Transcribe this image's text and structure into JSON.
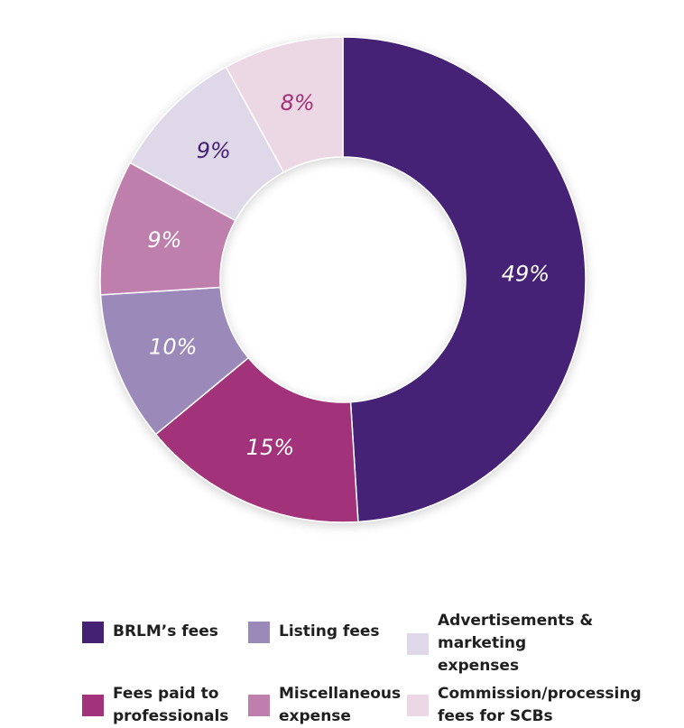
{
  "chart_data": {
    "type": "pie",
    "variant": "donut",
    "slices": [
      {
        "label": "BRLM’s fees",
        "value": 49,
        "value_label": "49%",
        "color": "#452174",
        "label_color": "#ffffff"
      },
      {
        "label": "Fees paid to professionals",
        "value": 15,
        "value_label": "15%",
        "color": "#a2327a",
        "label_color": "#ffffff"
      },
      {
        "label": "Listing fees",
        "value": 10,
        "value_label": "10%",
        "color": "#9b8ab9",
        "label_color": "#ffffff"
      },
      {
        "label": "Miscellaneous expense",
        "value": 9,
        "value_label": "9%",
        "color": "#bf7fac",
        "label_color": "#ffffff"
      },
      {
        "label": "Advertisements & marketing expenses",
        "value": 9,
        "value_label": "9%",
        "color": "#ded8e8",
        "label_color": "#452174"
      },
      {
        "label": "Commission/processing fees for SCBs",
        "value": 8,
        "value_label": "8%",
        "color": "#ecd8e4",
        "label_color": "#a2327a"
      }
    ],
    "legend": {
      "placement": "bottom",
      "rows": [
        [
          {
            "line1": "BRLM’s fees",
            "line2": "",
            "color": "#452174"
          },
          {
            "line1": "Listing fees",
            "line2": "",
            "color": "#9b8ab9"
          },
          {
            "line1": "Advertisements & marketing",
            "line2": "expenses",
            "color": "#ded8e8"
          }
        ],
        [
          {
            "line1": "Fees paid to",
            "line2": "professionals",
            "color": "#a2327a"
          },
          {
            "line1": "Miscellaneous",
            "line2": "expense",
            "color": "#bf7fac"
          },
          {
            "line1": "Commission/processing",
            "line2": "fees for SCBs",
            "color": "#ecd8e4"
          }
        ]
      ]
    }
  }
}
